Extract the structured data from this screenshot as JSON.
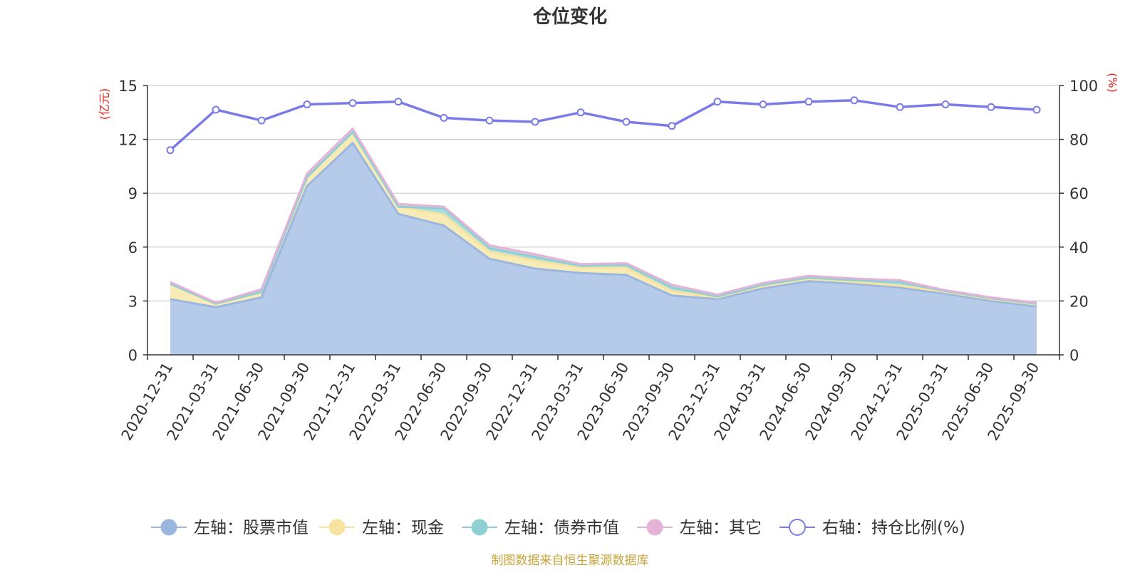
{
  "chart_data": {
    "type": "area",
    "title": "仓位变化",
    "ylabel_left": "(亿元)",
    "ylabel_right": "(%)",
    "ylim_left": [
      0,
      15
    ],
    "ylim_right": [
      0,
      100
    ],
    "yticks_left": [
      0,
      3,
      6,
      9,
      12,
      15
    ],
    "yticks_right": [
      0,
      20,
      40,
      60,
      80,
      100
    ],
    "categories": [
      "2020-12-31",
      "2021-03-31",
      "2021-06-30",
      "2021-09-30",
      "2021-12-31",
      "2022-03-31",
      "2022-06-30",
      "2022-09-30",
      "2022-12-31",
      "2023-03-31",
      "2023-06-30",
      "2023-09-30",
      "2023-12-31",
      "2024-03-31",
      "2024-06-30",
      "2024-09-30",
      "2024-12-31",
      "2025-03-31",
      "2025-06-30",
      "2025-09-30"
    ],
    "stacked_series": [
      {
        "name": "左轴：股票市值",
        "color": "#9bb7e0",
        "fill": "#b6cae9",
        "values": [
          3.1,
          2.65,
          3.2,
          9.4,
          11.8,
          7.85,
          7.2,
          5.35,
          4.8,
          4.55,
          4.45,
          3.3,
          3.1,
          3.7,
          4.1,
          3.95,
          3.75,
          3.4,
          3.0,
          2.7
        ]
      },
      {
        "name": "左轴：现金",
        "color": "#f7e3a0",
        "fill": "#f9ebb6",
        "values": [
          0.85,
          0.2,
          0.3,
          0.5,
          0.6,
          0.4,
          0.6,
          0.4,
          0.45,
          0.3,
          0.4,
          0.25,
          0.1,
          0.15,
          0.15,
          0.1,
          0.1,
          0.1,
          0.1,
          0.1
        ]
      },
      {
        "name": "左轴：债券市值",
        "color": "#8fd0d4",
        "fill": "#abdcdf",
        "values": [
          0.0,
          0.0,
          0.0,
          0.0,
          0.0,
          0.0,
          0.35,
          0.2,
          0.2,
          0.1,
          0.15,
          0.2,
          0.05,
          0.05,
          0.05,
          0.1,
          0.2,
          0.05,
          0.05,
          0.05
        ]
      },
      {
        "name": "左轴：其它",
        "color": "#e3b3d8",
        "fill": "#ecc8e4",
        "values": [
          0.1,
          0.05,
          0.15,
          0.2,
          0.2,
          0.15,
          0.1,
          0.15,
          0.15,
          0.1,
          0.1,
          0.15,
          0.1,
          0.1,
          0.1,
          0.1,
          0.1,
          0.05,
          0.05,
          0.05
        ]
      }
    ],
    "line_series": {
      "name": "右轴：持仓比例(%)",
      "color": "#7b7be8",
      "values": [
        76,
        91,
        87,
        93,
        93.5,
        94,
        88,
        87,
        86.5,
        90,
        86.5,
        85,
        94,
        93,
        94,
        94.5,
        92,
        93,
        92,
        91
      ]
    },
    "legend_position": "bottom",
    "source": "制图数据来自恒生聚源数据库"
  },
  "colors": {
    "axis": "#333333",
    "grid": "#cccccc",
    "axis_label_red": "#e3231a",
    "source_text": "#c8a33a",
    "title": "#333333"
  }
}
